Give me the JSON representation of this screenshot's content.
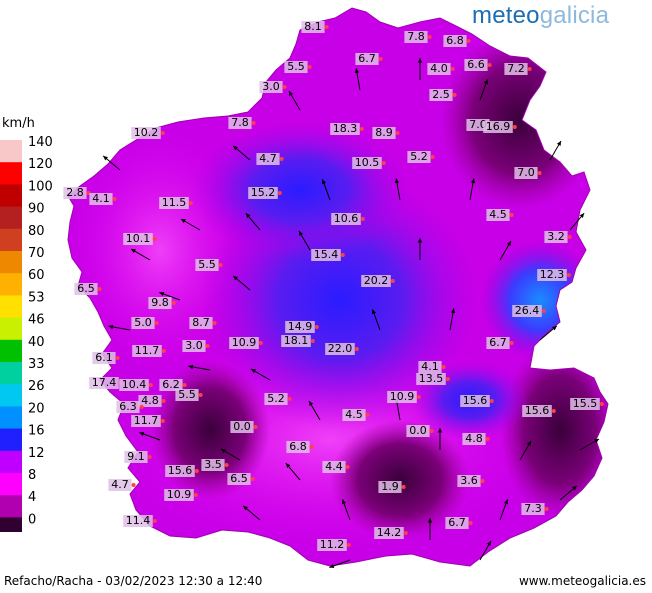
{
  "brand": {
    "part1": "meteo",
    "part2": "galicia"
  },
  "legend": {
    "unit": "km/h",
    "levels": [
      {
        "label": "140",
        "color": "#f8c8c8"
      },
      {
        "label": "120",
        "color": "#ff0000"
      },
      {
        "label": "100",
        "color": "#c00000"
      },
      {
        "label": "90",
        "color": "#b42020"
      },
      {
        "label": "80",
        "color": "#d04020"
      },
      {
        "label": "70",
        "color": "#ee8800"
      },
      {
        "label": "60",
        "color": "#ffb000"
      },
      {
        "label": "53",
        "color": "#ffe000"
      },
      {
        "label": "46",
        "color": "#c8f000"
      },
      {
        "label": "40",
        "color": "#00c000"
      },
      {
        "label": "33",
        "color": "#00d0a0"
      },
      {
        "label": "26",
        "color": "#00c8f0"
      },
      {
        "label": "20",
        "color": "#0090ff"
      },
      {
        "label": "16",
        "color": "#2020ff"
      },
      {
        "label": "12",
        "color": "#c000ff"
      },
      {
        "label": "8",
        "color": "#ff00ff"
      },
      {
        "label": "4",
        "color": "#b000b0"
      },
      {
        "label": "0",
        "color": "#300030"
      }
    ]
  },
  "stations": [
    {
      "value": "8.1"
    },
    {
      "value": "7.8"
    },
    {
      "value": "6.8"
    },
    {
      "value": "6.7"
    },
    {
      "value": "5.5"
    },
    {
      "value": "6.6"
    },
    {
      "value": "4.0"
    },
    {
      "value": "7.2"
    },
    {
      "value": "3.0"
    },
    {
      "value": "2.5"
    },
    {
      "value": "7.8"
    },
    {
      "value": "18.3"
    },
    {
      "value": "8.9"
    },
    {
      "value": "7.0"
    },
    {
      "value": "16.9"
    },
    {
      "value": "10.2"
    },
    {
      "value": "4.7"
    },
    {
      "value": "10.5"
    },
    {
      "value": "5.2"
    },
    {
      "value": "7.0"
    },
    {
      "value": "2.8"
    },
    {
      "value": "4.1"
    },
    {
      "value": "15.2"
    },
    {
      "value": "11.5"
    },
    {
      "value": "10.6"
    },
    {
      "value": "4.5"
    },
    {
      "value": "10.1"
    },
    {
      "value": "3.2"
    },
    {
      "value": "15.4"
    },
    {
      "value": "5.5"
    },
    {
      "value": "20.2"
    },
    {
      "value": "12.3"
    },
    {
      "value": "6.5"
    },
    {
      "value": "9.8"
    },
    {
      "value": "26.4"
    },
    {
      "value": "5.0"
    },
    {
      "value": "8.7"
    },
    {
      "value": "14.9"
    },
    {
      "value": "6.7"
    },
    {
      "value": "10.9"
    },
    {
      "value": "18.1"
    },
    {
      "value": "22.0"
    },
    {
      "value": "3.0"
    },
    {
      "value": "11.7"
    },
    {
      "value": "6.1"
    },
    {
      "value": "4.1"
    },
    {
      "value": "17.4"
    },
    {
      "value": "10.4"
    },
    {
      "value": "13.5"
    },
    {
      "value": "6.2"
    },
    {
      "value": "4.8"
    },
    {
      "value": "5.5"
    },
    {
      "value": "10.9"
    },
    {
      "value": "6.3"
    },
    {
      "value": "5.2"
    },
    {
      "value": "15.6"
    },
    {
      "value": "15.5"
    },
    {
      "value": "4.5"
    },
    {
      "value": "15.6"
    },
    {
      "value": "11.7"
    },
    {
      "value": "0.0"
    },
    {
      "value": "0.0"
    },
    {
      "value": "9.1"
    },
    {
      "value": "6.8"
    },
    {
      "value": "4.8"
    },
    {
      "value": "15.6"
    },
    {
      "value": "3.5"
    },
    {
      "value": "4.4"
    },
    {
      "value": "3.6"
    },
    {
      "value": "4.7"
    },
    {
      "value": "6.5"
    },
    {
      "value": "1.9"
    },
    {
      "value": "10.9"
    },
    {
      "value": "7.3"
    },
    {
      "value": "11.4"
    },
    {
      "value": "6.7"
    },
    {
      "value": "14.2"
    },
    {
      "value": "11.2"
    }
  ],
  "footer": {
    "left": "Refacho/Racha - 03/02/2023 12:30 a 12:40",
    "right": "www.meteogalicia.es"
  }
}
